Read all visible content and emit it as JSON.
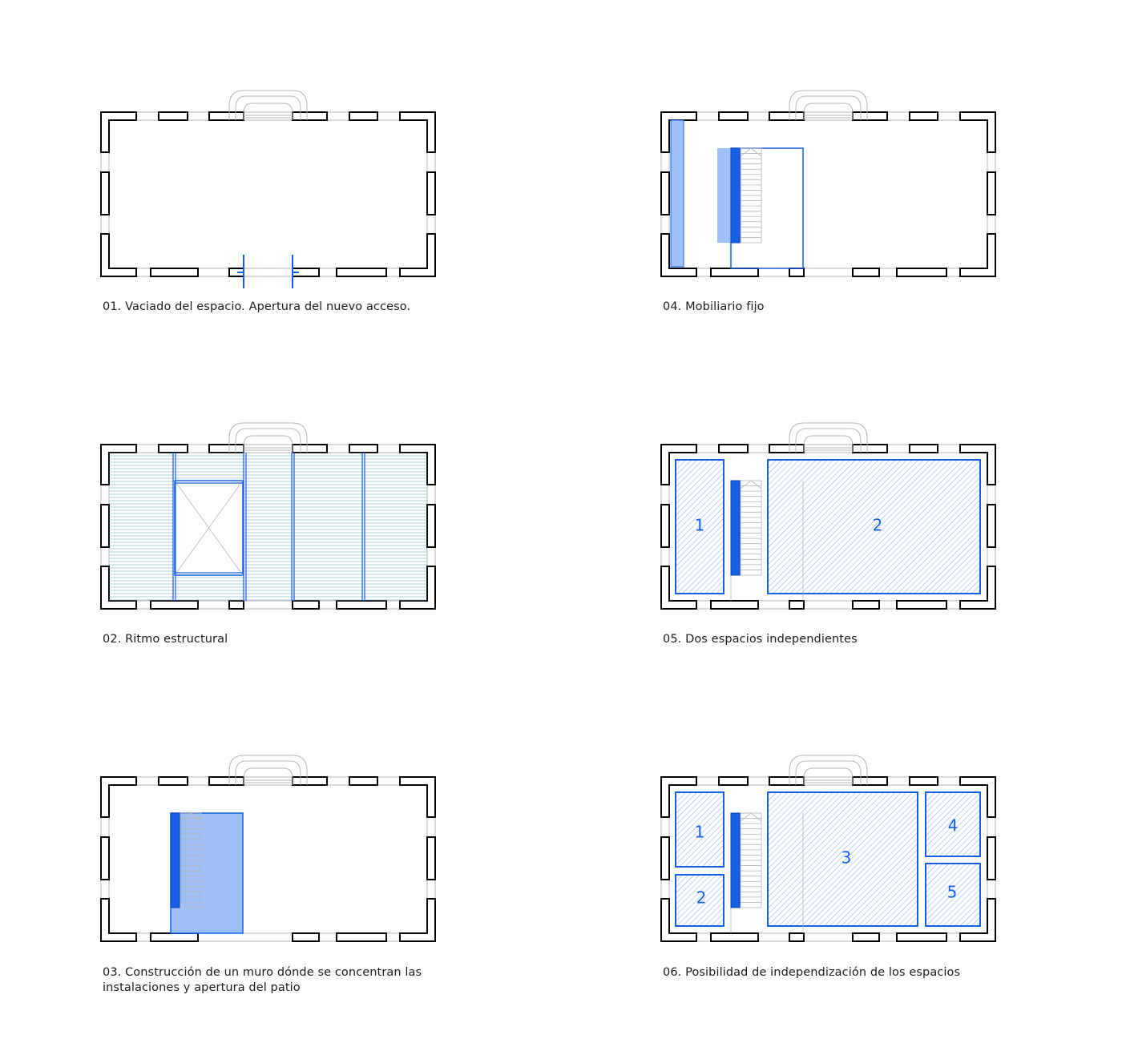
{
  "colors": {
    "wall": "#000000",
    "accent": "#1560e6",
    "accent_fill": "#9ec0f7",
    "thin": "#b4b4b4",
    "hatch": "#6aa3f2"
  },
  "panels": [
    {
      "id": "p01",
      "caption_lines": [
        "01. Vaciado del espacio. Apertura del nuevo acceso."
      ]
    },
    {
      "id": "p02",
      "caption_lines": [
        "02. Ritmo estructural"
      ]
    },
    {
      "id": "p03",
      "caption_lines": [
        "03. Construcción de un muro dónde se concentran las",
        "instalaciones y apertura del patio"
      ]
    },
    {
      "id": "p04",
      "caption_lines": [
        "04. Mobiliario fijo"
      ]
    },
    {
      "id": "p05",
      "caption_lines": [
        "05. Dos espacios independientes"
      ],
      "rooms": [
        "1",
        "2"
      ]
    },
    {
      "id": "p06",
      "caption_lines": [
        "06. Posibilidad de independización de los espacios"
      ],
      "rooms": [
        "1",
        "2",
        "3",
        "4",
        "5"
      ]
    }
  ]
}
